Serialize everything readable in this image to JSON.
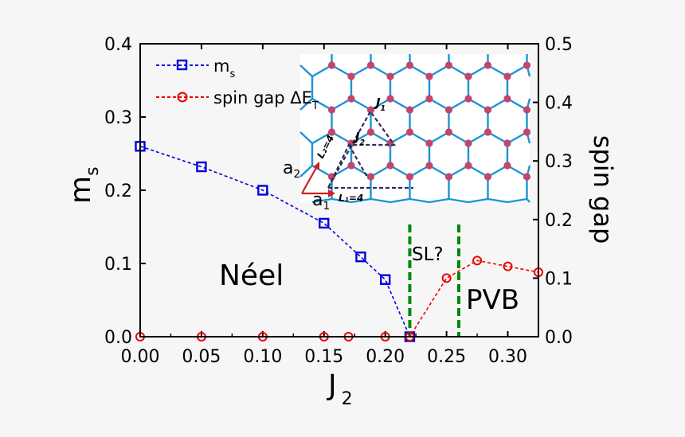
{
  "chart_data": {
    "type": "line",
    "xlabel": "J",
    "xlabel_sub": "2",
    "ylabel_left": "m",
    "ylabel_left_sub": "s",
    "ylabel_right": "spin gap",
    "xlim": [
      0.0,
      0.325
    ],
    "ylim_left": [
      0.0,
      0.4
    ],
    "ylim_right": [
      0.0,
      0.5
    ],
    "x_ticks": [
      0.0,
      0.05,
      0.1,
      0.15,
      0.2,
      0.25,
      0.3
    ],
    "x_tick_labels": [
      "0.00",
      "0.05",
      "0.10",
      "0.15",
      "0.20",
      "0.25",
      "0.30"
    ],
    "y_left_ticks": [
      0.0,
      0.1,
      0.2,
      0.3,
      0.4
    ],
    "y_left_tick_labels": [
      "0.0",
      "0.1",
      "0.2",
      "0.3",
      "0.4"
    ],
    "y_right_ticks": [
      0.0,
      0.1,
      0.2,
      0.3,
      0.4,
      0.5
    ],
    "y_right_tick_labels": [
      "0.0",
      "0.1",
      "0.2",
      "0.3",
      "0.4",
      "0.5"
    ],
    "series": [
      {
        "name": "m",
        "name_sub": "s",
        "axis": "left",
        "color": "#0000dd",
        "marker": "square",
        "x": [
          0.0,
          0.05,
          0.1,
          0.15,
          0.18,
          0.2,
          0.22
        ],
        "y": [
          0.26,
          0.232,
          0.2,
          0.155,
          0.109,
          0.078,
          0.0
        ]
      },
      {
        "name": "spin gap ΔE",
        "name_sub": "T",
        "axis": "right",
        "color": "#ee0000",
        "marker": "circle",
        "x": [
          0.0,
          0.05,
          0.1,
          0.15,
          0.17,
          0.2,
          0.22,
          0.25,
          0.275,
          0.3,
          0.325
        ],
        "y": [
          0.0,
          0.0,
          0.0,
          0.0,
          0.0,
          0.0,
          0.0,
          0.1,
          0.13,
          0.12,
          0.11
        ]
      }
    ],
    "phase_boundaries": [
      0.22,
      0.26
    ],
    "phase_boundary_color": "#008800",
    "annotations": [
      "Néel",
      "SL?",
      "PVB"
    ]
  },
  "inset": {
    "bond_colors": {
      "honeycomb": "#1a93d6",
      "site": "#c4456b",
      "arrow": "#d02020",
      "j_label": "#cc2a78",
      "dash": "#2b2f55",
      "lattice_label": "#4a5a72"
    },
    "labels": {
      "j1": "J",
      "j1_sub": "1",
      "j2": "J",
      "j2_sub": "2",
      "a1": "a",
      "a1_sub": "1",
      "a2": "a",
      "a2_sub": "2",
      "l1": "L₁=4",
      "l2": "L₂=4"
    }
  }
}
